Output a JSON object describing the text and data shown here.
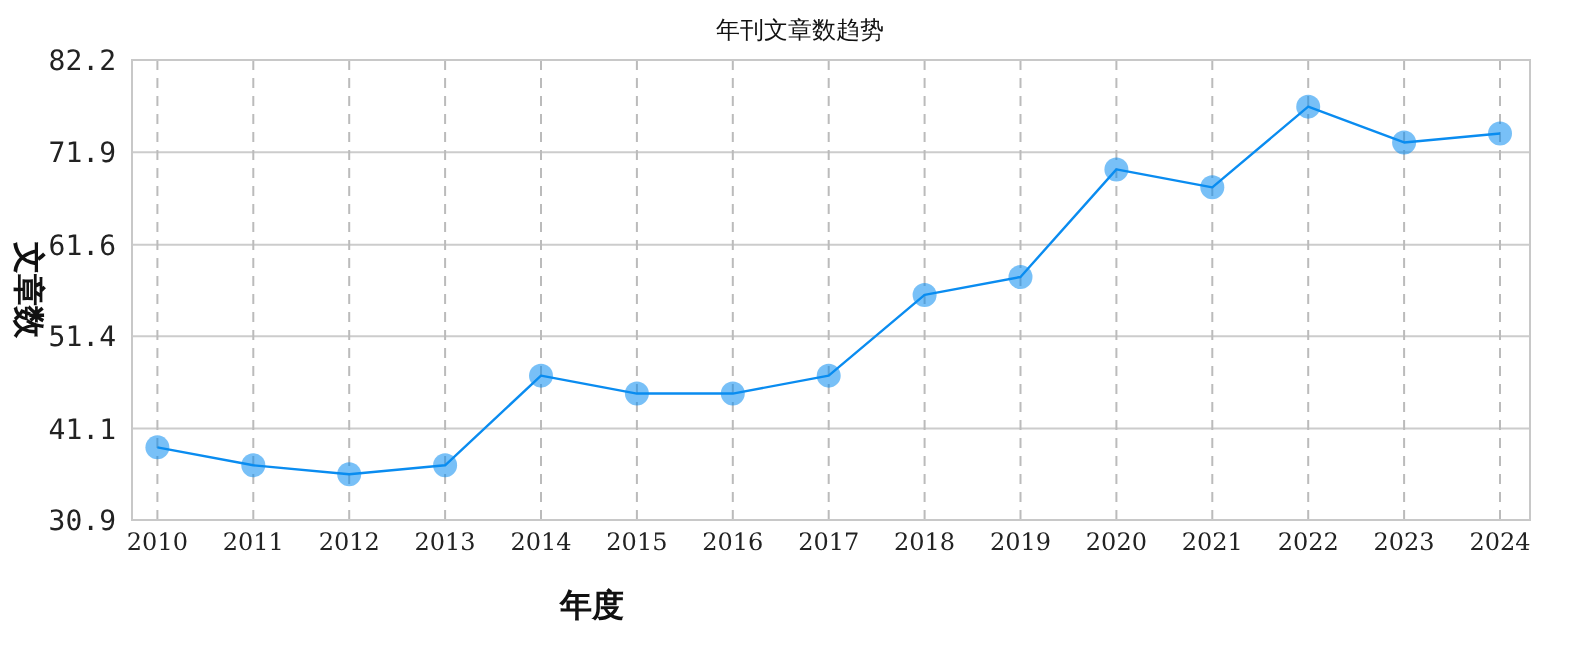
{
  "chart_data": {
    "type": "line",
    "title": "年刊文章数趋势",
    "xlabel": "年度",
    "ylabel": "文章数",
    "categories": [
      "2010",
      "2011",
      "2012",
      "2013",
      "2014",
      "2015",
      "2016",
      "2017",
      "2018",
      "2019",
      "2020",
      "2021",
      "2022",
      "2023",
      "2024"
    ],
    "series": [
      {
        "color": "#0a8cf0",
        "values": [
          39,
          37,
          36,
          37,
          47,
          45,
          45,
          47,
          56,
          58,
          70,
          68,
          77,
          73,
          74
        ]
      }
    ],
    "ylim": [
      30.9,
      82.2
    ],
    "yticks": [
      30.9,
      41.1,
      51.4,
      61.6,
      71.9,
      82.2
    ],
    "grid": true,
    "marker": "circle"
  }
}
